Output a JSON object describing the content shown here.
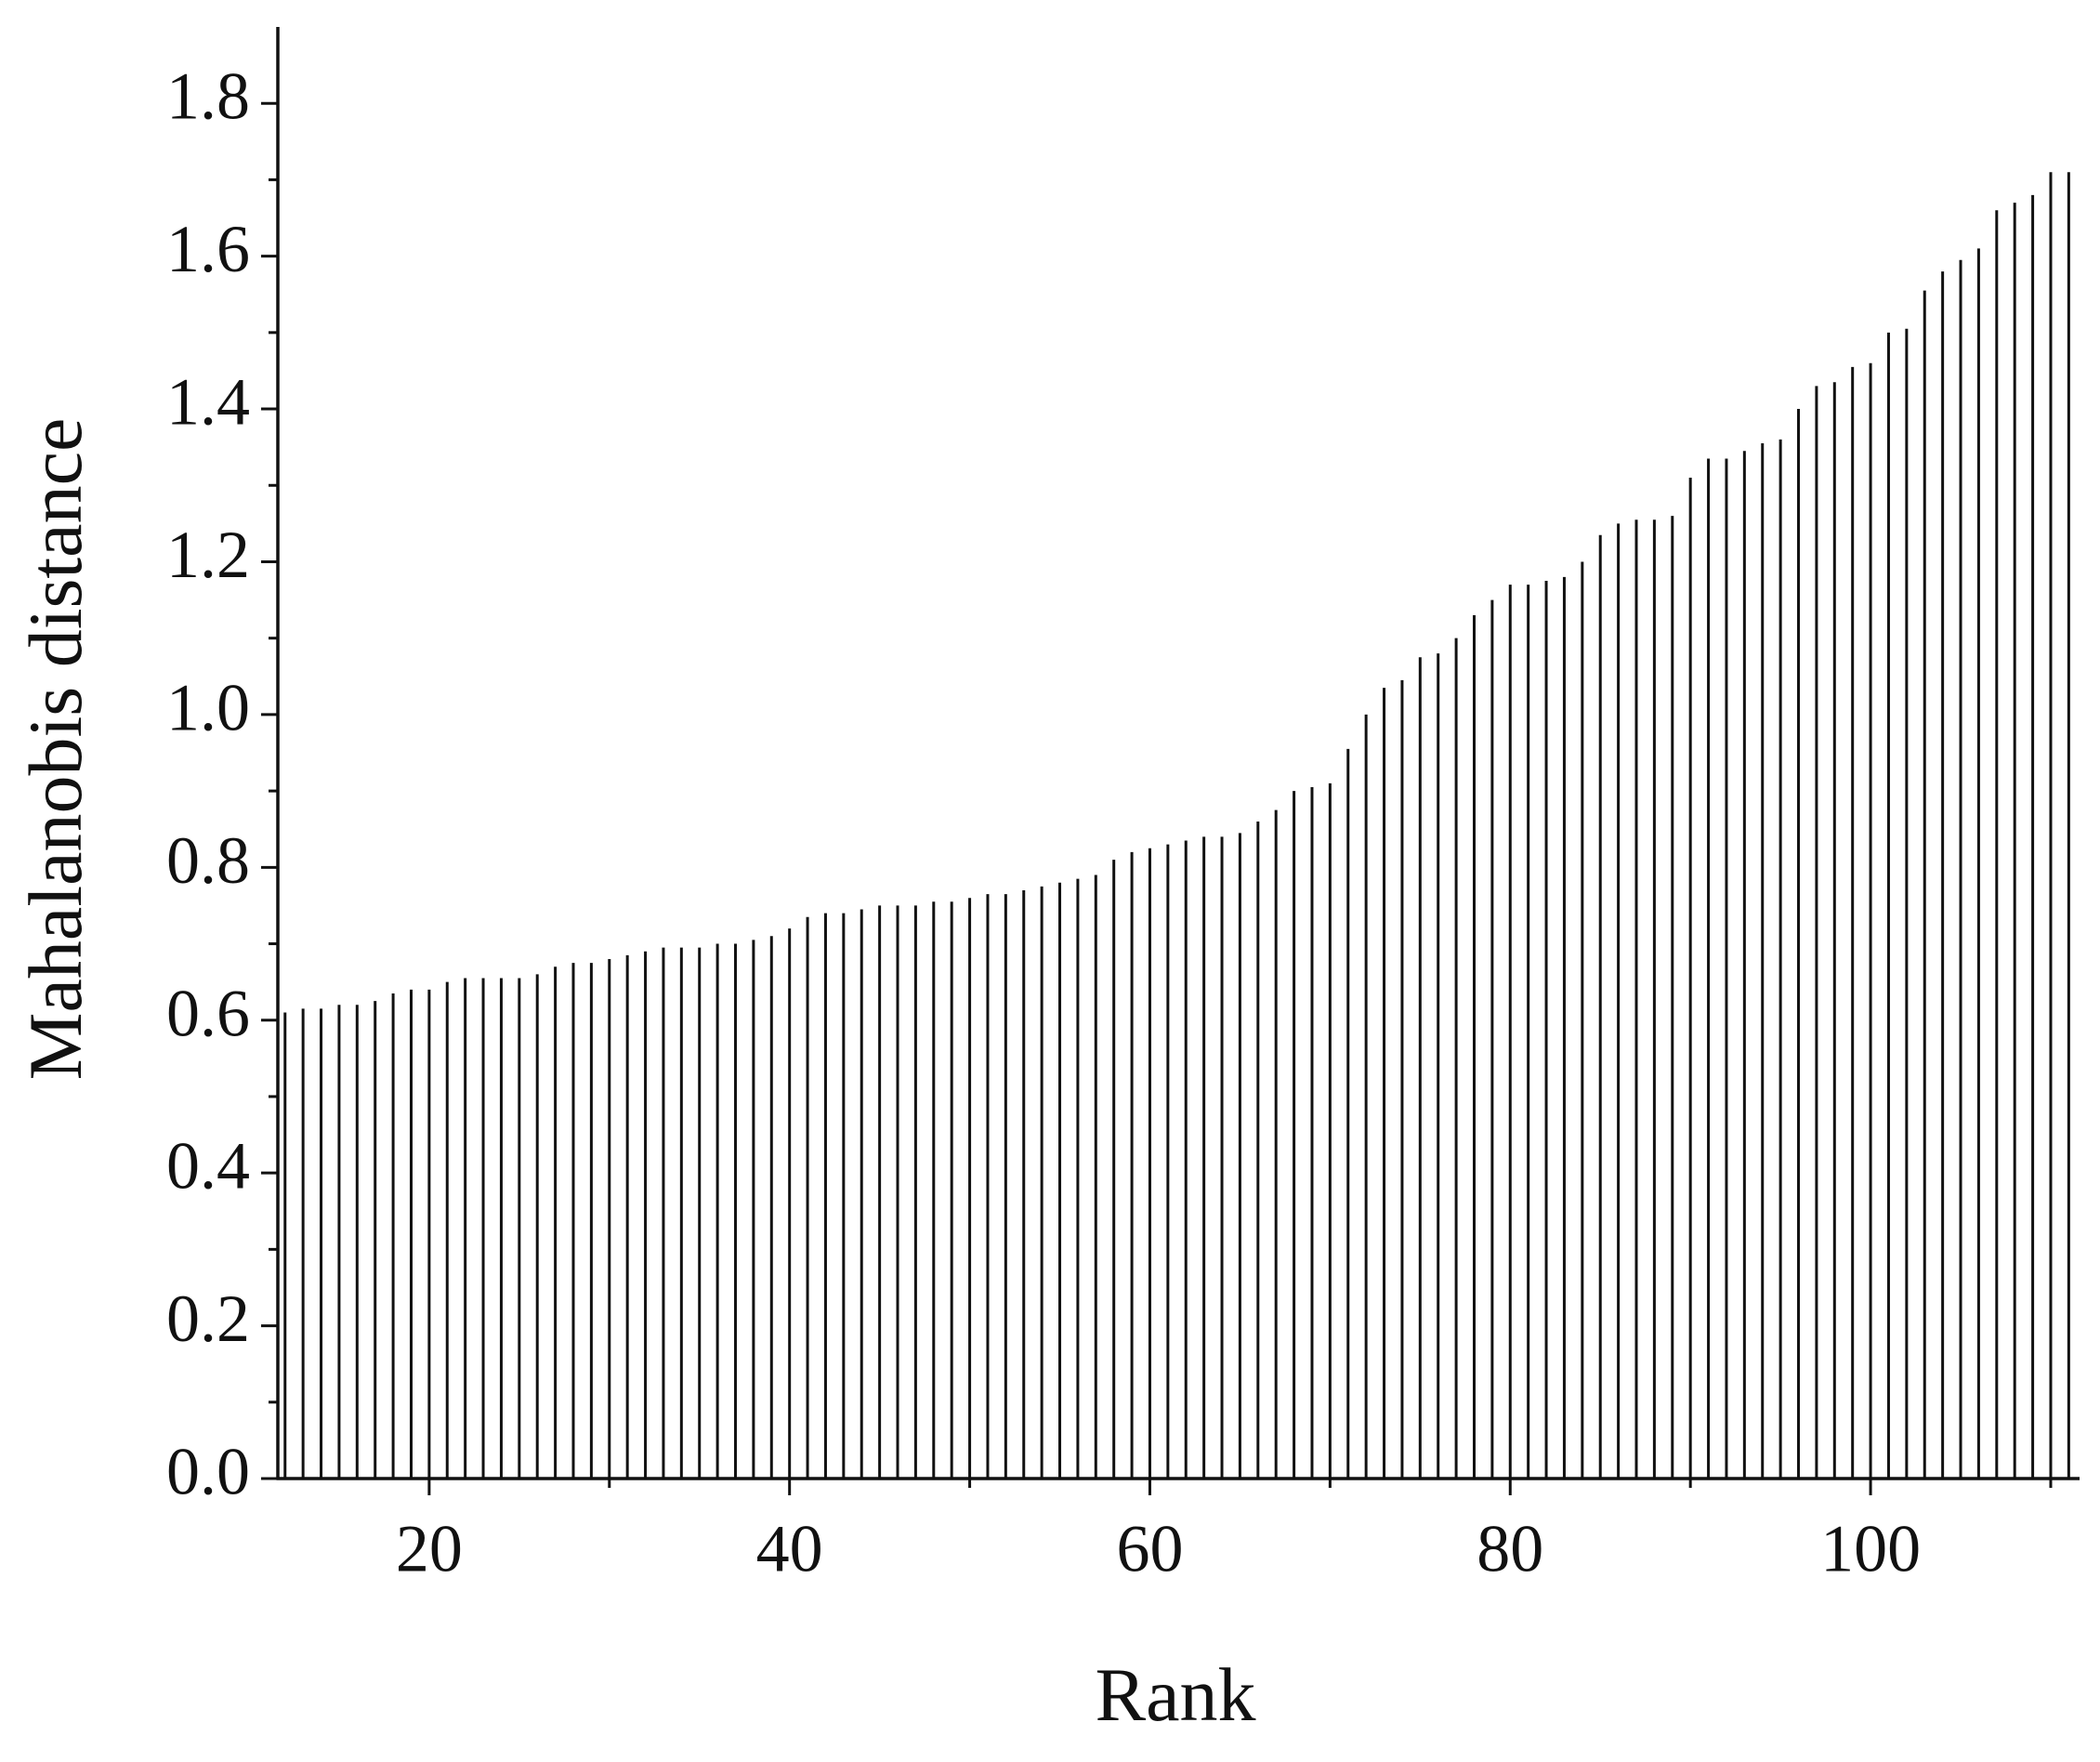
{
  "chart_data": {
    "type": "bar",
    "x_label": "Rank",
    "y_label": "Mahalanobis distance",
    "x": [
      12,
      13,
      14,
      15,
      16,
      17,
      18,
      19,
      20,
      21,
      22,
      23,
      24,
      25,
      26,
      27,
      28,
      29,
      30,
      31,
      32,
      33,
      34,
      35,
      36,
      37,
      38,
      39,
      40,
      41,
      42,
      43,
      44,
      45,
      46,
      47,
      48,
      49,
      50,
      51,
      52,
      53,
      54,
      55,
      56,
      57,
      58,
      59,
      60,
      61,
      62,
      63,
      64,
      65,
      66,
      67,
      68,
      69,
      70,
      71,
      72,
      73,
      74,
      75,
      76,
      77,
      78,
      79,
      80,
      81,
      82,
      83,
      84,
      85,
      86,
      87,
      88,
      89,
      90,
      91,
      92,
      93,
      94,
      95,
      96,
      97,
      98,
      99,
      100,
      101,
      102,
      103,
      104,
      105,
      106,
      107,
      108,
      109,
      110,
      111
    ],
    "values": [
      0.61,
      0.615,
      0.615,
      0.62,
      0.62,
      0.625,
      0.635,
      0.64,
      0.64,
      0.65,
      0.655,
      0.655,
      0.655,
      0.655,
      0.66,
      0.67,
      0.675,
      0.675,
      0.68,
      0.685,
      0.69,
      0.695,
      0.695,
      0.695,
      0.7,
      0.7,
      0.705,
      0.71,
      0.72,
      0.735,
      0.74,
      0.74,
      0.745,
      0.75,
      0.75,
      0.75,
      0.755,
      0.755,
      0.76,
      0.765,
      0.765,
      0.77,
      0.775,
      0.78,
      0.785,
      0.79,
      0.81,
      0.82,
      0.825,
      0.83,
      0.835,
      0.84,
      0.84,
      0.845,
      0.86,
      0.875,
      0.9,
      0.905,
      0.91,
      0.955,
      1.0,
      1.035,
      1.045,
      1.075,
      1.08,
      1.1,
      1.13,
      1.15,
      1.17,
      1.17,
      1.175,
      1.18,
      1.2,
      1.235,
      1.25,
      1.255,
      1.255,
      1.26,
      1.31,
      1.335,
      1.335,
      1.345,
      1.355,
      1.36,
      1.4,
      1.43,
      1.435,
      1.455,
      1.46,
      1.5,
      1.505,
      1.555,
      1.58,
      1.595,
      1.61,
      1.66,
      1.67,
      1.68,
      1.71,
      1.71
    ],
    "color": "#111111",
    "xlim": [
      11.6,
      111.6
    ],
    "xticks": [
      20,
      40,
      60,
      80,
      100
    ],
    "xminor": [
      30,
      50,
      70,
      90,
      110
    ],
    "ylim": [
      0,
      1.9
    ],
    "yticks": [
      {
        "value": 0,
        "label": "0.0"
      },
      0.2,
      0.4,
      0.6,
      0.8,
      {
        "value": 1,
        "label": "1.0"
      },
      1.2,
      1.4,
      1.6,
      1.8
    ],
    "yminor": [
      0.1,
      0.3,
      0.5,
      0.7,
      0.9,
      1.1,
      1.3,
      1.5,
      1.7
    ]
  }
}
